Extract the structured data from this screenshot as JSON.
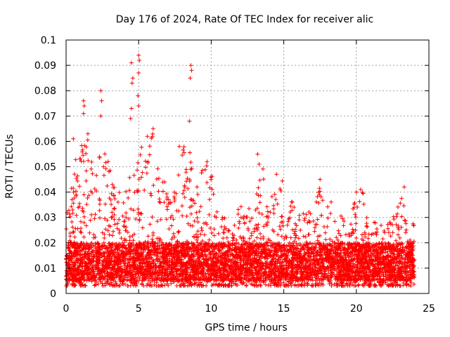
{
  "chart_data": {
    "type": "scatter",
    "title": "Day 176 of 2024, Rate Of TEC Index for receiver alic",
    "xlabel": "GPS time / hours",
    "ylabel": "ROTI / TECUs",
    "xlim": [
      0,
      25
    ],
    "ylim": [
      0,
      0.1
    ],
    "xticks": [
      0,
      5,
      10,
      15,
      20,
      25
    ],
    "yticks": [
      0,
      0.01,
      0.02,
      0.03,
      0.04,
      0.05,
      0.06,
      0.07,
      0.08,
      0.09,
      0.1
    ],
    "xtick_labels": [
      "0",
      "5",
      "10",
      "15",
      "20",
      "25"
    ],
    "ytick_labels": [
      "0",
      "0.01",
      "0.02",
      "0.03",
      "0.04",
      "0.05",
      "0.06",
      "0.07",
      "0.08",
      "0.09",
      "0.1"
    ],
    "grid": true,
    "marker": "+",
    "marker_color": "#ff0000",
    "series": [
      {
        "name": "ROTI",
        "x_range": [
          0,
          24
        ],
        "sample_count": 6000,
        "typical_range": [
          0.003,
          0.03
        ],
        "dense_band": [
          0.005,
          0.02
        ],
        "hourly_envelope": {
          "hours": [
            0,
            0.5,
            1,
            1.5,
            2,
            2.5,
            3,
            3.5,
            4,
            4.5,
            5,
            5.5,
            6,
            6.5,
            7,
            7.5,
            8,
            8.5,
            9,
            9.5,
            10,
            10.5,
            11,
            11.5,
            12,
            12.5,
            13,
            13.5,
            14,
            14.5,
            15,
            15.5,
            16,
            16.5,
            17,
            17.5,
            18,
            18.5,
            19,
            19.5,
            20,
            20.5,
            21,
            21.5,
            22,
            22.5,
            23,
            23.5,
            24
          ],
          "upper": [
            0.03,
            0.05,
            0.06,
            0.063,
            0.045,
            0.06,
            0.05,
            0.04,
            0.04,
            0.05,
            0.06,
            0.055,
            0.065,
            0.05,
            0.045,
            0.04,
            0.058,
            0.06,
            0.045,
            0.05,
            0.055,
            0.035,
            0.03,
            0.03,
            0.04,
            0.035,
            0.035,
            0.055,
            0.04,
            0.04,
            0.047,
            0.04,
            0.03,
            0.035,
            0.03,
            0.044,
            0.035,
            0.038,
            0.03,
            0.03,
            0.04,
            0.041,
            0.03,
            0.028,
            0.028,
            0.03,
            0.042,
            0.03,
            0.03
          ]
        },
        "outliers": [
          {
            "x": 4.5,
            "y": 0.091
          },
          {
            "x": 4.6,
            "y": 0.085
          },
          {
            "x": 4.55,
            "y": 0.083
          },
          {
            "x": 4.5,
            "y": 0.073
          },
          {
            "x": 4.45,
            "y": 0.069
          },
          {
            "x": 5.0,
            "y": 0.094
          },
          {
            "x": 5.05,
            "y": 0.092
          },
          {
            "x": 5.0,
            "y": 0.087
          },
          {
            "x": 4.95,
            "y": 0.078
          },
          {
            "x": 5.0,
            "y": 0.074
          },
          {
            "x": 8.6,
            "y": 0.09
          },
          {
            "x": 8.65,
            "y": 0.088
          },
          {
            "x": 8.55,
            "y": 0.085
          },
          {
            "x": 8.5,
            "y": 0.068
          },
          {
            "x": 2.4,
            "y": 0.08
          },
          {
            "x": 2.45,
            "y": 0.076
          },
          {
            "x": 2.4,
            "y": 0.07
          },
          {
            "x": 1.2,
            "y": 0.076
          },
          {
            "x": 1.25,
            "y": 0.074
          },
          {
            "x": 1.2,
            "y": 0.071
          },
          {
            "x": 1.5,
            "y": 0.063
          },
          {
            "x": 0.5,
            "y": 0.061
          },
          {
            "x": 6.0,
            "y": 0.065
          },
          {
            "x": 5.6,
            "y": 0.062
          },
          {
            "x": 7.8,
            "y": 0.058
          },
          {
            "x": 13.2,
            "y": 0.055
          },
          {
            "x": 13.3,
            "y": 0.051
          },
          {
            "x": 14.5,
            "y": 0.047
          },
          {
            "x": 17.5,
            "y": 0.045
          },
          {
            "x": 20.0,
            "y": 0.04
          },
          {
            "x": 20.3,
            "y": 0.041
          },
          {
            "x": 23.3,
            "y": 0.042
          }
        ]
      }
    ]
  }
}
